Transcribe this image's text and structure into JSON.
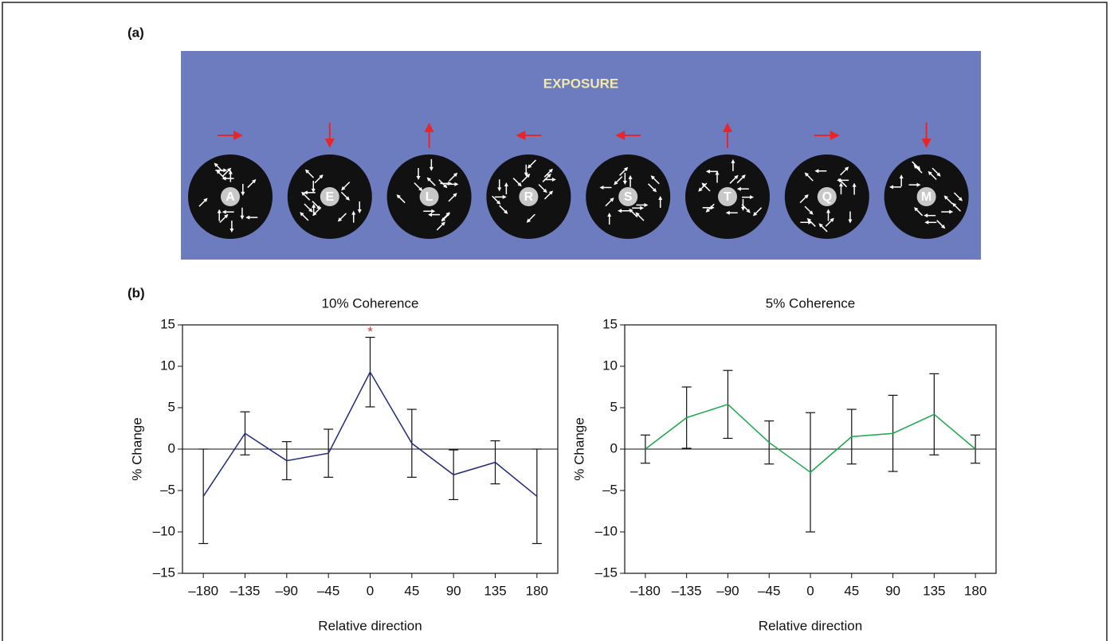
{
  "panel_a": {
    "label": "(a)",
    "title": "EXPOSURE",
    "stimuli": [
      "A",
      "E",
      "L",
      "R",
      "S",
      "T",
      "Q",
      "M"
    ]
  },
  "panel_b": {
    "label": "(b)"
  },
  "chart_data": [
    {
      "type": "line",
      "title": "10% Coherence",
      "xlabel": "Relative direction",
      "ylabel": "% Change",
      "color": "#1f2a7a",
      "x": [
        -180,
        -135,
        -90,
        -45,
        0,
        45,
        90,
        135,
        180
      ],
      "values": [
        -5.7,
        1.9,
        -1.4,
        -0.5,
        9.3,
        0.7,
        -3.1,
        -1.6,
        -5.7
      ],
      "errors": [
        5.7,
        2.6,
        2.3,
        2.9,
        4.2,
        4.1,
        3.0,
        2.6,
        5.7
      ],
      "annotations": [
        {
          "text": "*",
          "x": 0,
          "color": "#e03030"
        }
      ],
      "xlim": [
        -202.5,
        202.5
      ],
      "ylim": [
        -15,
        15
      ],
      "xticks": [
        {
          "value": -180,
          "label": "–180"
        },
        {
          "value": -135,
          "label": "–135"
        },
        {
          "value": -90,
          "label": "–90"
        },
        {
          "value": -45,
          "label": "–45"
        },
        0,
        45,
        90,
        135,
        180
      ],
      "yticks": [
        {
          "value": -15,
          "label": "–15"
        },
        {
          "value": -10,
          "label": "–10"
        },
        {
          "value": -5,
          "label": "–5"
        },
        0,
        5,
        10,
        15
      ]
    },
    {
      "type": "line",
      "title": "5% Coherence",
      "xlabel": "Relative direction",
      "ylabel": "% Change",
      "color": "#1aa84a",
      "x": [
        -180,
        -135,
        -90,
        -45,
        0,
        45,
        90,
        135,
        180
      ],
      "values": [
        0,
        3.8,
        5.4,
        0.8,
        -2.8,
        1.5,
        1.9,
        4.2,
        0
      ],
      "errors": [
        1.7,
        3.7,
        4.1,
        2.6,
        7.2,
        3.3,
        4.6,
        4.9,
        1.7
      ],
      "annotations": [],
      "xlim": [
        -202.5,
        202.5
      ],
      "ylim": [
        -15,
        15
      ],
      "xticks": [
        {
          "value": -180,
          "label": "–180"
        },
        {
          "value": -135,
          "label": "–135"
        },
        {
          "value": -90,
          "label": "–90"
        },
        {
          "value": -45,
          "label": "–45"
        },
        0,
        45,
        90,
        135,
        180
      ],
      "yticks": [
        {
          "value": -15,
          "label": "–15"
        },
        {
          "value": -10,
          "label": "–10"
        },
        {
          "value": -5,
          "label": "–5"
        },
        0,
        5,
        10,
        15
      ]
    }
  ]
}
